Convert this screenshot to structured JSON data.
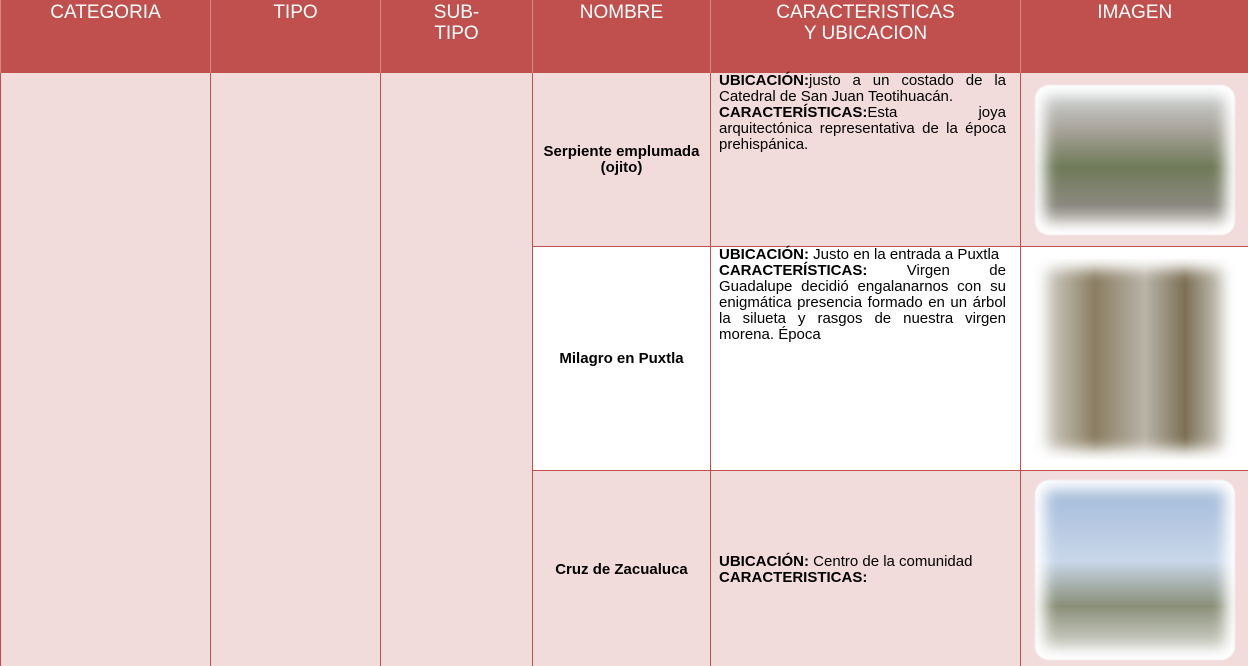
{
  "header": {
    "columns": [
      "CATEGORIA",
      "TIPO",
      "SUB-\nTIPO",
      "NOMBRE",
      "CARACTERISTICAS\nY UBICACION",
      "IMAGEN"
    ]
  },
  "rows": [
    {
      "name": "Serpiente emplumada (ojito)",
      "location_label": "UBICACIÓN:",
      "location": "justo a un costado de la Catedral de San Juan Teotihuacán.",
      "features_label": "CARACTERÍSTICAS:",
      "features": "Esta joya arquitectónica representativa de la época prehispánica."
    },
    {
      "name": "Milagro en Puxtla",
      "location_label": "UBICACIÓN:",
      "location": "Justo en la entrada a Puxtla",
      "features_label": "CARACTERÍSTICAS:",
      "features": "Virgen de Guadalupe decidió engalanarnos con su enigmática presencia formado en un árbol la silueta y rasgos de nuestra virgen morena. Época"
    },
    {
      "name": "Cruz de Zacualuca",
      "location_label": "UBICACIÓN:",
      "location": "Centro de la comunidad",
      "features_label": "CARACTERISTICAS:"
    }
  ]
}
